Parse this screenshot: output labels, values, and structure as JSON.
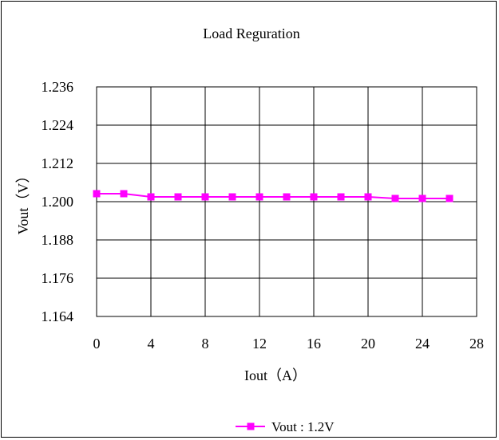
{
  "chart_data": {
    "type": "line",
    "title": "Load Reguration",
    "xlabel": "Iout（A）",
    "ylabel": "Vout（V）",
    "xlim": [
      0,
      28
    ],
    "ylim": [
      1.164,
      1.236
    ],
    "xticks": [
      "0",
      "4",
      "8",
      "12",
      "16",
      "20",
      "24",
      "28"
    ],
    "yticks": [
      "1.164",
      "1.176",
      "1.188",
      "1.200",
      "1.212",
      "1.224",
      "1.236"
    ],
    "grid": true,
    "legend": "bottom",
    "series": [
      {
        "name": "Vout : 1.2V",
        "color": "#ff00ff",
        "marker": "square",
        "x": [
          0,
          2,
          4,
          6,
          8,
          10,
          12,
          14,
          16,
          18,
          20,
          22,
          24,
          26
        ],
        "y": [
          1.2025,
          1.2025,
          1.2015,
          1.2015,
          1.2015,
          1.2015,
          1.2015,
          1.2015,
          1.2015,
          1.2015,
          1.2015,
          1.201,
          1.201,
          1.201
        ]
      }
    ]
  }
}
